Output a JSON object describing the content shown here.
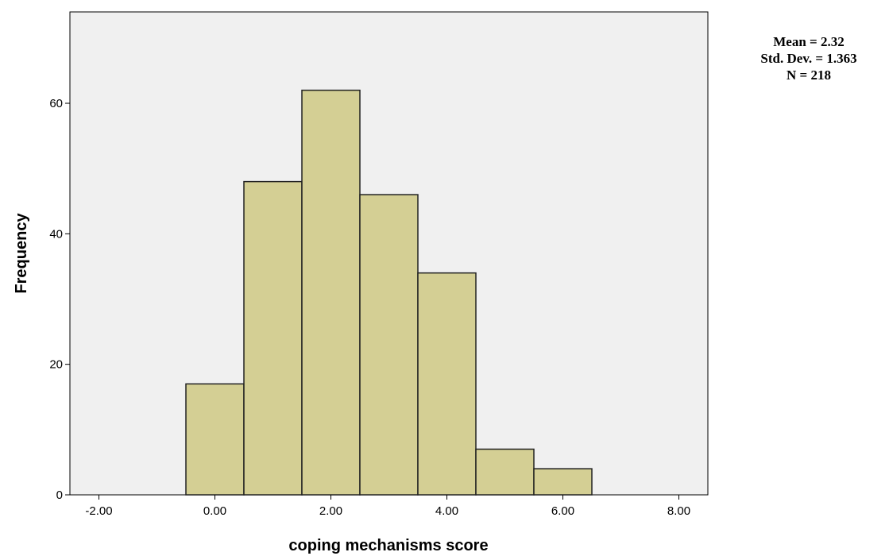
{
  "chart_data": {
    "type": "bar",
    "subtype": "histogram",
    "xlabel": "coping mechanisms score",
    "ylabel": "Frequency",
    "xlim": [
      -2.5,
      8.5
    ],
    "ylim": [
      0,
      74
    ],
    "x_ticks": [
      -2,
      0,
      2,
      4,
      6,
      8
    ],
    "x_tick_labels": [
      "-2.00",
      "0.00",
      "2.00",
      "4.00",
      "6.00",
      "8.00"
    ],
    "y_ticks": [
      0,
      20,
      40,
      60
    ],
    "y_tick_labels": [
      "0",
      "20",
      "40",
      "60"
    ],
    "bins": [
      {
        "start": -0.5,
        "end": 0.5,
        "value": 17
      },
      {
        "start": 0.5,
        "end": 1.5,
        "value": 48
      },
      {
        "start": 1.5,
        "end": 2.5,
        "value": 62
      },
      {
        "start": 2.5,
        "end": 3.5,
        "value": 46
      },
      {
        "start": 3.5,
        "end": 4.5,
        "value": 34
      },
      {
        "start": 4.5,
        "end": 5.5,
        "value": 7
      },
      {
        "start": 5.5,
        "end": 6.5,
        "value": 4
      }
    ],
    "grid": false,
    "colors": {
      "bar_fill": "#d4cf94",
      "bar_stroke": "#222222",
      "plot_background": "#f0f0f0"
    }
  },
  "stats": {
    "mean": "Mean = 2.32",
    "std_dev": "Std. Dev. = 1.363",
    "n": "N = 218"
  }
}
